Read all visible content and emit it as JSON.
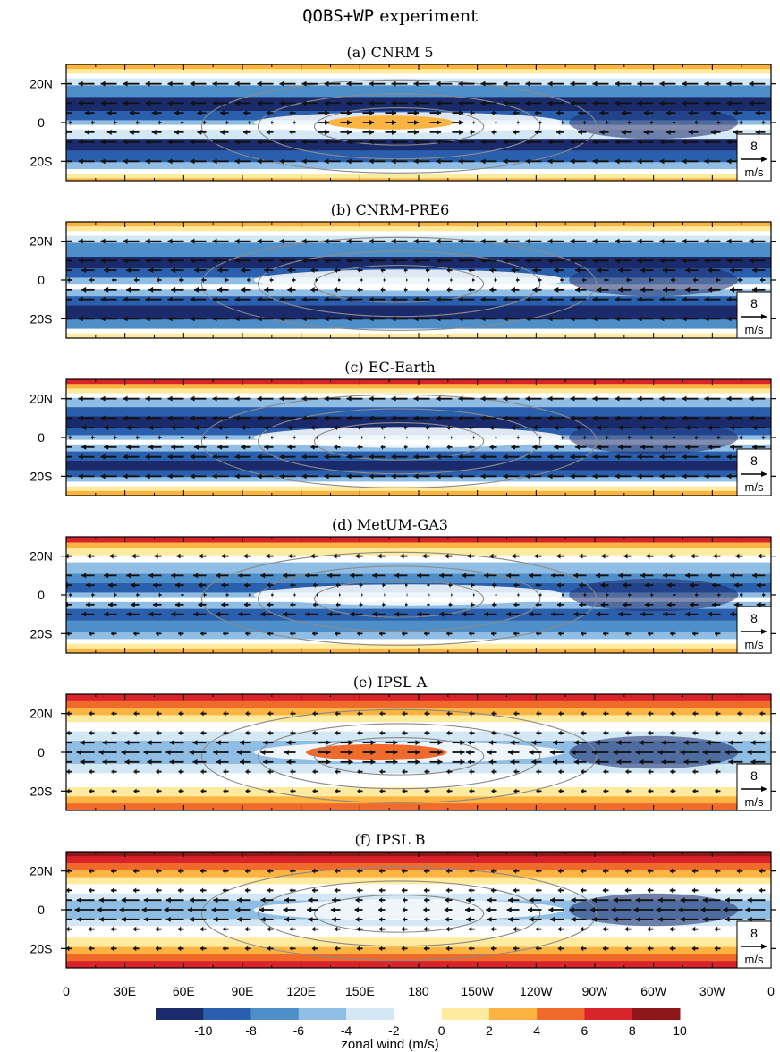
{
  "figure": {
    "title_code": "QOBS+WP",
    "title_rest": " experiment"
  },
  "chart_data": {
    "type": "heatmap",
    "variable": "zonal wind",
    "x_ticks": [
      "0",
      "30E",
      "60E",
      "90E",
      "120E",
      "150E",
      "180",
      "150W",
      "120W",
      "90W",
      "60W",
      "30W",
      "0"
    ],
    "y_ticks": [
      "20N",
      "0",
      "20S"
    ],
    "y_tick_values": [
      20,
      0,
      -20
    ],
    "ylim": [
      -30,
      30
    ],
    "xlim": [
      0,
      360
    ],
    "reference_vector": {
      "value": "8",
      "unit": "m/s"
    },
    "colorbar": {
      "label": "zonal wind (m/s)",
      "tick_labels": [
        "-10",
        "-8",
        "-6",
        "-4",
        "-2",
        "0",
        "2",
        "4",
        "6",
        "8",
        "10"
      ],
      "colors": [
        "#1b2a6b",
        "#2a5fad",
        "#4e8fca",
        "#8fbde3",
        "#d3e8f4",
        "#ffffff",
        "#ffeba0",
        "#fbb341",
        "#f06a2b",
        "#d8232a",
        "#8e1719"
      ]
    },
    "panels": [
      {
        "id": "a",
        "title": "(a) CNRM 5",
        "bands": [
          [
            "#fbb341",
            0
          ],
          [
            "#ffeba0",
            4
          ],
          [
            "#ffffff",
            8
          ],
          [
            "#d3e8f4",
            12
          ],
          [
            "#4e8fca",
            18
          ],
          [
            "#1b2a6b",
            28
          ],
          [
            "#2a5fad",
            40
          ],
          [
            "#8fbde3",
            48
          ],
          [
            "#ffffff",
            52
          ],
          [
            "#d3e8f4",
            56
          ],
          [
            "#1b2a6b",
            64
          ],
          [
            "#2a5fad",
            74
          ],
          [
            "#8fbde3",
            84
          ],
          [
            "#ffffff",
            90
          ],
          [
            "#ffeba0",
            94
          ],
          [
            "#fbb341",
            98
          ]
        ],
        "jet": {
          "cx": 0.46,
          "ry": 0.06,
          "rx": 0.09,
          "color": "#fbb341"
        },
        "arrow_len": 18,
        "arrow_scale": [
          1,
          1,
          0.6,
          0.2,
          0.6,
          1,
          1
        ]
      },
      {
        "id": "b",
        "title": "(b) CNRM-PRE6",
        "bands": [
          [
            "#fbb341",
            0
          ],
          [
            "#ffeba0",
            4
          ],
          [
            "#ffffff",
            8
          ],
          [
            "#d3e8f4",
            12
          ],
          [
            "#4e8fca",
            18
          ],
          [
            "#1b2a6b",
            30
          ],
          [
            "#2a5fad",
            40
          ],
          [
            "#8fbde3",
            48
          ],
          [
            "#ffffff",
            54
          ],
          [
            "#8fbde3",
            58
          ],
          [
            "#2a5fad",
            64
          ],
          [
            "#1b2a6b",
            72
          ],
          [
            "#4e8fca",
            84
          ],
          [
            "#ffffff",
            92
          ],
          [
            "#ffeba0",
            96
          ]
        ],
        "jet": null,
        "arrow_len": 18,
        "arrow_scale": [
          1,
          1,
          0.8,
          0.3,
          0.8,
          1,
          1
        ]
      },
      {
        "id": "c",
        "title": "(c) EC-Earth",
        "bands": [
          [
            "#d8232a",
            0
          ],
          [
            "#fbb341",
            4
          ],
          [
            "#ffeba0",
            8
          ],
          [
            "#ffffff",
            12
          ],
          [
            "#8fbde3",
            16
          ],
          [
            "#2a5fad",
            24
          ],
          [
            "#1b2a6b",
            32
          ],
          [
            "#2a5fad",
            42
          ],
          [
            "#8fbde3",
            48
          ],
          [
            "#ffffff",
            52
          ],
          [
            "#8fbde3",
            56
          ],
          [
            "#2a5fad",
            62
          ],
          [
            "#1b2a6b",
            70
          ],
          [
            "#2a5fad",
            78
          ],
          [
            "#8fbde3",
            84
          ],
          [
            "#ffffff",
            88
          ],
          [
            "#ffeba0",
            92
          ],
          [
            "#fbb341",
            96
          ]
        ],
        "jet": null,
        "arrow_len": 18,
        "arrow_scale": [
          1,
          1,
          0.8,
          0.2,
          0.8,
          1,
          1
        ]
      },
      {
        "id": "d",
        "title": "(d) MetUM-GA3",
        "bands": [
          [
            "#d8232a",
            0
          ],
          [
            "#fbb341",
            5
          ],
          [
            "#ffeba0",
            10
          ],
          [
            "#ffffff",
            16
          ],
          [
            "#8fbde3",
            22
          ],
          [
            "#4e8fca",
            32
          ],
          [
            "#2a5fad",
            40
          ],
          [
            "#8fbde3",
            48
          ],
          [
            "#ffffff",
            52
          ],
          [
            "#8fbde3",
            56
          ],
          [
            "#2a5fad",
            62
          ],
          [
            "#4e8fca",
            72
          ],
          [
            "#8fbde3",
            82
          ],
          [
            "#ffffff",
            88
          ],
          [
            "#ffeba0",
            92
          ],
          [
            "#fbb341",
            96
          ]
        ],
        "jet": null,
        "arrow_len": 16,
        "arrow_scale": [
          0.5,
          0.9,
          0.6,
          0.2,
          0.6,
          0.9,
          0.4
        ]
      },
      {
        "id": "e",
        "title": "(e) IPSL A",
        "bands": [
          [
            "#d8232a",
            0
          ],
          [
            "#f06a2b",
            6
          ],
          [
            "#fbb341",
            12
          ],
          [
            "#ffeba0",
            18
          ],
          [
            "#ffffff",
            24
          ],
          [
            "#d3e8f4",
            32
          ],
          [
            "#8fbde3",
            40
          ],
          [
            "#d3e8f4",
            60
          ],
          [
            "#ffffff",
            68
          ],
          [
            "#ffeba0",
            80
          ],
          [
            "#fbb341",
            88
          ],
          [
            "#f06a2b",
            94
          ]
        ],
        "jet": {
          "cx": 0.44,
          "ry": 0.07,
          "rx": 0.1,
          "color": "#f06a2b"
        },
        "arrow_len": 20,
        "arrow_scale": [
          0.3,
          0.3,
          0.8,
          1,
          0.8,
          0.3,
          0.3
        ]
      },
      {
        "id": "f",
        "title": "(f) IPSL B",
        "bands": [
          [
            "#8e1719",
            0
          ],
          [
            "#d8232a",
            4
          ],
          [
            "#f06a2b",
            10
          ],
          [
            "#fbb341",
            16
          ],
          [
            "#ffeba0",
            22
          ],
          [
            "#ffffff",
            28
          ],
          [
            "#d3e8f4",
            36
          ],
          [
            "#8fbde3",
            42
          ],
          [
            "#d3e8f4",
            58
          ],
          [
            "#ffffff",
            64
          ],
          [
            "#ffeba0",
            74
          ],
          [
            "#fbb341",
            82
          ],
          [
            "#f06a2b",
            88
          ],
          [
            "#d8232a",
            94
          ]
        ],
        "jet": null,
        "arrow_len": 22,
        "arrow_scale": [
          0.3,
          0.3,
          0.9,
          1,
          0.9,
          0.3,
          0.3
        ]
      }
    ]
  }
}
